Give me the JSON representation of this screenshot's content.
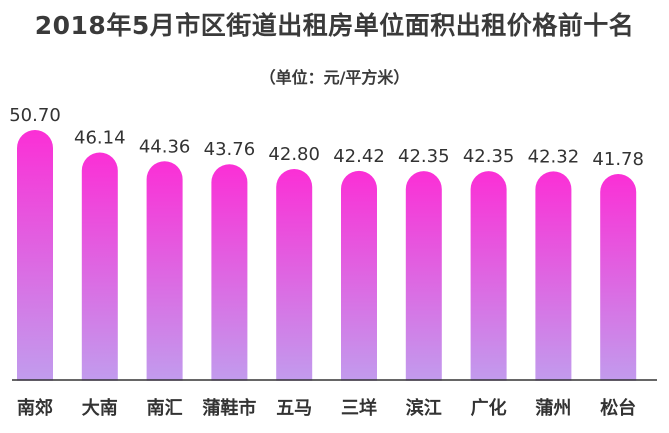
{
  "chart_data": {
    "type": "bar",
    "title": "2018年5月市区街道出租房单位面积出租价格前十名",
    "subtitle": "（单位：元/平方米）",
    "categories": [
      "南郊",
      "大南",
      "南汇",
      "蒲鞋市",
      "五马",
      "三垟",
      "滨江",
      "广化",
      "蒲州",
      "松台"
    ],
    "values": [
      50.7,
      46.14,
      44.36,
      43.76,
      42.8,
      42.42,
      42.35,
      42.35,
      42.32,
      41.78
    ],
    "value_labels": [
      "50.70",
      "46.14",
      "44.36",
      "43.76",
      "42.80",
      "42.42",
      "42.35",
      "42.35",
      "42.32",
      "41.78"
    ],
    "xlabel": "",
    "ylabel": "",
    "ylim": [
      0,
      50.7
    ],
    "grid": false,
    "legend": "none",
    "colors": {
      "bar_top": "#fb2fd6",
      "bar_bottom": "#bda4ef",
      "baseline": "#333333",
      "text": "#333333"
    }
  }
}
